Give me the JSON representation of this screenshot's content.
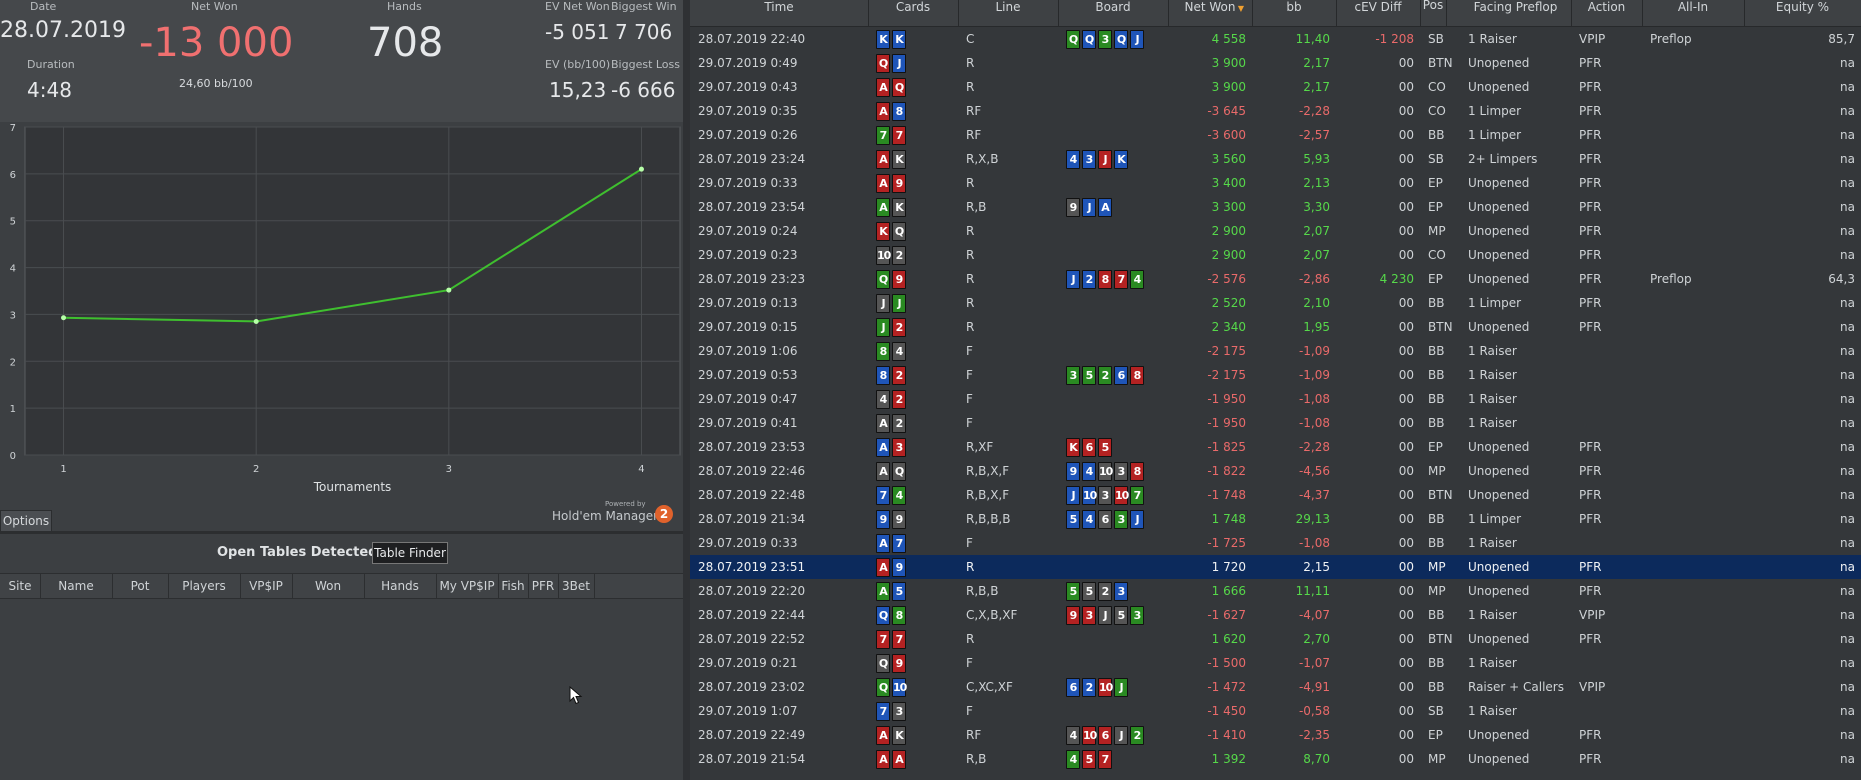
{
  "summary": {
    "date_label": "Date",
    "date": "28.07.2019",
    "duration_label": "Duration",
    "duration": "4:48",
    "netwon_label": "Net Won",
    "netwon": "-13 000",
    "bb100": "24,60 bb/100",
    "hands_label": "Hands",
    "hands": "708",
    "ev_net_label": "EV Net Won",
    "ev_net": "-5 051",
    "biggest_win_label": "Biggest Win",
    "biggest_win": "7 706",
    "ev_bb_label": "EV (bb/100)",
    "ev_bb": "15,23",
    "biggest_loss_label": "Biggest Loss",
    "biggest_loss": "-6 666"
  },
  "chart_data": {
    "type": "line",
    "x": [
      1,
      2,
      3,
      4
    ],
    "y": [
      2.93,
      2.85,
      3.52,
      6.1
    ],
    "xlabel": "Tournaments",
    "ylabel": "",
    "xlim": [
      0.8,
      4.2
    ],
    "ylim": [
      0,
      7
    ],
    "xticks": [
      "1",
      "2",
      "3",
      "4"
    ],
    "yticks": [
      "0",
      "1",
      "2",
      "3",
      "4",
      "5",
      "6",
      "7"
    ],
    "line_color": "#3fbf2f",
    "grid": true
  },
  "powered_by": "Powered by",
  "hm_brand": "Hold'em Manager",
  "hm_logo": "2",
  "options_label": "Options",
  "open_tables": {
    "title": "Open Tables Detected",
    "table_finder": "Table Finder",
    "columns": [
      "Site",
      "Name",
      "Pot",
      "Players",
      "VP$IP",
      "Won",
      "Hands",
      "My VP$IP",
      "Fish",
      "PFR",
      "3Bet"
    ]
  },
  "grid": {
    "columns": [
      "Time",
      "Cards",
      "Line",
      "Board",
      "Net Won",
      "bb",
      "cEV Diff",
      "Pos",
      "Facing Preflop",
      "Action",
      "All-In",
      "Equity %"
    ],
    "rows": [
      {
        "time": "28.07.2019 22:40",
        "cards": [
          [
            "K",
            "d"
          ],
          [
            "K",
            "d"
          ]
        ],
        "line": "C",
        "board": [
          [
            "Q",
            "c"
          ],
          [
            "Q",
            "d"
          ],
          [
            "3",
            "c"
          ],
          [
            "Q",
            "d"
          ],
          [
            "J",
            "d"
          ]
        ],
        "net": "4 558",
        "bb": "11,40",
        "cev": "-1 208",
        "pos": "SB",
        "facing": "1 Raiser",
        "action": "VPIP",
        "allin": "Preflop",
        "eq": "85,7"
      },
      {
        "time": "29.07.2019 0:49",
        "cards": [
          [
            "Q",
            "h"
          ],
          [
            "J",
            "d"
          ]
        ],
        "line": "R",
        "board": [],
        "net": "3 900",
        "bb": "2,17",
        "cev": "00",
        "pos": "BTN",
        "facing": "Unopened",
        "action": "PFR",
        "allin": "",
        "eq": "na"
      },
      {
        "time": "29.07.2019 0:43",
        "cards": [
          [
            "A",
            "h"
          ],
          [
            "Q",
            "h"
          ]
        ],
        "line": "R",
        "board": [],
        "net": "3 900",
        "bb": "2,17",
        "cev": "00",
        "pos": "CO",
        "facing": "Unopened",
        "action": "PFR",
        "allin": "",
        "eq": "na"
      },
      {
        "time": "29.07.2019 0:35",
        "cards": [
          [
            "A",
            "h"
          ],
          [
            "8",
            "d"
          ]
        ],
        "line": "RF",
        "board": [],
        "net": "-3 645",
        "bb": "-2,28",
        "cev": "00",
        "pos": "CO",
        "facing": "1 Limper",
        "action": "PFR",
        "allin": "",
        "eq": "na"
      },
      {
        "time": "29.07.2019 0:26",
        "cards": [
          [
            "7",
            "c"
          ],
          [
            "7",
            "h"
          ]
        ],
        "line": "RF",
        "board": [],
        "net": "-3 600",
        "bb": "-2,57",
        "cev": "00",
        "pos": "BB",
        "facing": "1 Limper",
        "action": "PFR",
        "allin": "",
        "eq": "na"
      },
      {
        "time": "28.07.2019 23:24",
        "cards": [
          [
            "A",
            "h"
          ],
          [
            "K",
            "s"
          ]
        ],
        "line": "R,X,B",
        "board": [
          [
            "4",
            "d"
          ],
          [
            "3",
            "d"
          ],
          [
            "J",
            "h"
          ],
          [
            "K",
            "d"
          ]
        ],
        "net": "3 560",
        "bb": "5,93",
        "cev": "00",
        "pos": "SB",
        "facing": "2+ Limpers",
        "action": "PFR",
        "allin": "",
        "eq": "na"
      },
      {
        "time": "29.07.2019 0:33",
        "cards": [
          [
            "A",
            "h"
          ],
          [
            "9",
            "h"
          ]
        ],
        "line": "R",
        "board": [],
        "net": "3 400",
        "bb": "2,13",
        "cev": "00",
        "pos": "EP",
        "facing": "Unopened",
        "action": "PFR",
        "allin": "",
        "eq": "na"
      },
      {
        "time": "28.07.2019 23:54",
        "cards": [
          [
            "A",
            "c"
          ],
          [
            "K",
            "s"
          ]
        ],
        "line": "R,B",
        "board": [
          [
            "9",
            "s"
          ],
          [
            "J",
            "d"
          ],
          [
            "A",
            "d"
          ]
        ],
        "net": "3 300",
        "bb": "3,30",
        "cev": "00",
        "pos": "EP",
        "facing": "Unopened",
        "action": "PFR",
        "allin": "",
        "eq": "na"
      },
      {
        "time": "29.07.2019 0:24",
        "cards": [
          [
            "K",
            "h"
          ],
          [
            "Q",
            "s"
          ]
        ],
        "line": "R",
        "board": [],
        "net": "2 900",
        "bb": "2,07",
        "cev": "00",
        "pos": "MP",
        "facing": "Unopened",
        "action": "PFR",
        "allin": "",
        "eq": "na"
      },
      {
        "time": "29.07.2019 0:23",
        "cards": [
          [
            "10",
            "s"
          ],
          [
            "2",
            "s"
          ]
        ],
        "line": "R",
        "board": [],
        "net": "2 900",
        "bb": "2,07",
        "cev": "00",
        "pos": "CO",
        "facing": "Unopened",
        "action": "PFR",
        "allin": "",
        "eq": "na"
      },
      {
        "time": "28.07.2019 23:23",
        "cards": [
          [
            "Q",
            "c"
          ],
          [
            "9",
            "h"
          ]
        ],
        "line": "R",
        "board": [
          [
            "J",
            "d"
          ],
          [
            "2",
            "d"
          ],
          [
            "8",
            "h"
          ],
          [
            "7",
            "h"
          ],
          [
            "4",
            "c"
          ]
        ],
        "net": "-2 576",
        "bb": "-2,86",
        "cev": "4 230",
        "pos": "EP",
        "facing": "Unopened",
        "action": "PFR",
        "allin": "Preflop",
        "eq": "64,3"
      },
      {
        "time": "29.07.2019 0:13",
        "cards": [
          [
            "J",
            "s"
          ],
          [
            "J",
            "c"
          ]
        ],
        "line": "R",
        "board": [],
        "net": "2 520",
        "bb": "2,10",
        "cev": "00",
        "pos": "BB",
        "facing": "1 Limper",
        "action": "PFR",
        "allin": "",
        "eq": "na"
      },
      {
        "time": "29.07.2019 0:15",
        "cards": [
          [
            "J",
            "c"
          ],
          [
            "2",
            "h"
          ]
        ],
        "line": "R",
        "board": [],
        "net": "2 340",
        "bb": "1,95",
        "cev": "00",
        "pos": "BTN",
        "facing": "Unopened",
        "action": "PFR",
        "allin": "",
        "eq": "na"
      },
      {
        "time": "29.07.2019 1:06",
        "cards": [
          [
            "8",
            "c"
          ],
          [
            "4",
            "s"
          ]
        ],
        "line": "F",
        "board": [],
        "net": "-2 175",
        "bb": "-1,09",
        "cev": "00",
        "pos": "BB",
        "facing": "1 Raiser",
        "action": "",
        "allin": "",
        "eq": "na"
      },
      {
        "time": "29.07.2019 0:53",
        "cards": [
          [
            "8",
            "d"
          ],
          [
            "2",
            "h"
          ]
        ],
        "line": "F",
        "board": [
          [
            "3",
            "c"
          ],
          [
            "5",
            "c"
          ],
          [
            "2",
            "c"
          ],
          [
            "6",
            "d"
          ],
          [
            "8",
            "h"
          ]
        ],
        "net": "-2 175",
        "bb": "-1,09",
        "cev": "00",
        "pos": "BB",
        "facing": "1 Raiser",
        "action": "",
        "allin": "",
        "eq": "na"
      },
      {
        "time": "29.07.2019 0:47",
        "cards": [
          [
            "4",
            "s"
          ],
          [
            "2",
            "h"
          ]
        ],
        "line": "F",
        "board": [],
        "net": "-1 950",
        "bb": "-1,08",
        "cev": "00",
        "pos": "BB",
        "facing": "1 Raiser",
        "action": "",
        "allin": "",
        "eq": "na"
      },
      {
        "time": "29.07.2019 0:41",
        "cards": [
          [
            "A",
            "s"
          ],
          [
            "2",
            "s"
          ]
        ],
        "line": "F",
        "board": [],
        "net": "-1 950",
        "bb": "-1,08",
        "cev": "00",
        "pos": "BB",
        "facing": "1 Raiser",
        "action": "",
        "allin": "",
        "eq": "na"
      },
      {
        "time": "28.07.2019 23:53",
        "cards": [
          [
            "A",
            "d"
          ],
          [
            "3",
            "h"
          ]
        ],
        "line": "R,XF",
        "board": [
          [
            "K",
            "h"
          ],
          [
            "6",
            "h"
          ],
          [
            "5",
            "h"
          ]
        ],
        "net": "-1 825",
        "bb": "-2,28",
        "cev": "00",
        "pos": "EP",
        "facing": "Unopened",
        "action": "PFR",
        "allin": "",
        "eq": "na"
      },
      {
        "time": "28.07.2019 22:46",
        "cards": [
          [
            "A",
            "s"
          ],
          [
            "Q",
            "s"
          ]
        ],
        "line": "R,B,X,F",
        "board": [
          [
            "9",
            "d"
          ],
          [
            "4",
            "d"
          ],
          [
            "10",
            "s"
          ],
          [
            "3",
            "s"
          ],
          [
            "8",
            "h"
          ]
        ],
        "net": "-1 822",
        "bb": "-4,56",
        "cev": "00",
        "pos": "MP",
        "facing": "Unopened",
        "action": "PFR",
        "allin": "",
        "eq": "na"
      },
      {
        "time": "28.07.2019 22:48",
        "cards": [
          [
            "7",
            "d"
          ],
          [
            "4",
            "c"
          ]
        ],
        "line": "R,B,X,F",
        "board": [
          [
            "J",
            "d"
          ],
          [
            "10",
            "d"
          ],
          [
            "3",
            "s"
          ],
          [
            "10",
            "h"
          ],
          [
            "7",
            "c"
          ]
        ],
        "net": "-1 748",
        "bb": "-4,37",
        "cev": "00",
        "pos": "BTN",
        "facing": "Unopened",
        "action": "PFR",
        "allin": "",
        "eq": "na"
      },
      {
        "time": "28.07.2019 21:34",
        "cards": [
          [
            "9",
            "d"
          ],
          [
            "9",
            "s"
          ]
        ],
        "line": "R,B,B,B",
        "board": [
          [
            "5",
            "d"
          ],
          [
            "4",
            "d"
          ],
          [
            "6",
            "s"
          ],
          [
            "3",
            "c"
          ],
          [
            "J",
            "d"
          ]
        ],
        "net": "1 748",
        "bb": "29,13",
        "cev": "00",
        "pos": "BB",
        "facing": "1 Limper",
        "action": "PFR",
        "allin": "",
        "eq": "na"
      },
      {
        "time": "29.07.2019 0:33",
        "cards": [
          [
            "A",
            "d"
          ],
          [
            "7",
            "d"
          ]
        ],
        "line": "F",
        "board": [],
        "net": "-1 725",
        "bb": "-1,08",
        "cev": "00",
        "pos": "BB",
        "facing": "1 Raiser",
        "action": "",
        "allin": "",
        "eq": "na"
      },
      {
        "time": "28.07.2019 23:51",
        "cards": [
          [
            "A",
            "h"
          ],
          [
            "9",
            "d"
          ]
        ],
        "line": "R",
        "board": [],
        "net": "1 720",
        "bb": "2,15",
        "cev": "00",
        "pos": "MP",
        "facing": "Unopened",
        "action": "PFR",
        "allin": "",
        "eq": "na",
        "selected": true
      },
      {
        "time": "28.07.2019 22:20",
        "cards": [
          [
            "A",
            "c"
          ],
          [
            "5",
            "d"
          ]
        ],
        "line": "R,B,B",
        "board": [
          [
            "5",
            "c"
          ],
          [
            "5",
            "s"
          ],
          [
            "2",
            "s"
          ],
          [
            "3",
            "d"
          ]
        ],
        "net": "1 666",
        "bb": "11,11",
        "cev": "00",
        "pos": "MP",
        "facing": "Unopened",
        "action": "PFR",
        "allin": "",
        "eq": "na"
      },
      {
        "time": "28.07.2019 22:44",
        "cards": [
          [
            "Q",
            "d"
          ],
          [
            "8",
            "c"
          ]
        ],
        "line": "C,X,B,XF",
        "board": [
          [
            "9",
            "h"
          ],
          [
            "3",
            "h"
          ],
          [
            "J",
            "s"
          ],
          [
            "5",
            "s"
          ],
          [
            "3",
            "c"
          ]
        ],
        "net": "-1 627",
        "bb": "-4,07",
        "cev": "00",
        "pos": "BB",
        "facing": "1 Raiser",
        "action": "VPIP",
        "allin": "",
        "eq": "na"
      },
      {
        "time": "28.07.2019 22:52",
        "cards": [
          [
            "7",
            "h"
          ],
          [
            "7",
            "h"
          ]
        ],
        "line": "R",
        "board": [],
        "net": "1 620",
        "bb": "2,70",
        "cev": "00",
        "pos": "BTN",
        "facing": "Unopened",
        "action": "PFR",
        "allin": "",
        "eq": "na"
      },
      {
        "time": "29.07.2019 0:21",
        "cards": [
          [
            "Q",
            "s"
          ],
          [
            "9",
            "h"
          ]
        ],
        "line": "F",
        "board": [],
        "net": "-1 500",
        "bb": "-1,07",
        "cev": "00",
        "pos": "BB",
        "facing": "1 Raiser",
        "action": "",
        "allin": "",
        "eq": "na"
      },
      {
        "time": "28.07.2019 23:02",
        "cards": [
          [
            "Q",
            "c"
          ],
          [
            "10",
            "d"
          ]
        ],
        "line": "C,XC,XF",
        "board": [
          [
            "6",
            "d"
          ],
          [
            "2",
            "d"
          ],
          [
            "10",
            "h"
          ],
          [
            "J",
            "c"
          ]
        ],
        "net": "-1 472",
        "bb": "-4,91",
        "cev": "00",
        "pos": "BB",
        "facing": "Raiser + Callers",
        "action": "VPIP",
        "allin": "",
        "eq": "na"
      },
      {
        "time": "29.07.2019 1:07",
        "cards": [
          [
            "7",
            "d"
          ],
          [
            "3",
            "s"
          ]
        ],
        "line": "F",
        "board": [],
        "net": "-1 450",
        "bb": "-0,58",
        "cev": "00",
        "pos": "SB",
        "facing": "1 Raiser",
        "action": "",
        "allin": "",
        "eq": "na"
      },
      {
        "time": "28.07.2019 22:49",
        "cards": [
          [
            "A",
            "h"
          ],
          [
            "K",
            "s"
          ]
        ],
        "line": "RF",
        "board": [
          [
            "4",
            "s"
          ],
          [
            "10",
            "h"
          ],
          [
            "6",
            "h"
          ],
          [
            "J",
            "s"
          ],
          [
            "2",
            "c"
          ]
        ],
        "net": "-1 410",
        "bb": "-2,35",
        "cev": "00",
        "pos": "EP",
        "facing": "Unopened",
        "action": "PFR",
        "allin": "",
        "eq": "na"
      },
      {
        "time": "28.07.2019 21:54",
        "cards": [
          [
            "A",
            "h"
          ],
          [
            "A",
            "h"
          ]
        ],
        "line": "R,B",
        "board": [
          [
            "4",
            "c"
          ],
          [
            "5",
            "h"
          ],
          [
            "7",
            "h"
          ]
        ],
        "net": "1 392",
        "bb": "8,70",
        "cev": "00",
        "pos": "MP",
        "facing": "Unopened",
        "action": "PFR",
        "allin": "",
        "eq": "na"
      }
    ]
  }
}
